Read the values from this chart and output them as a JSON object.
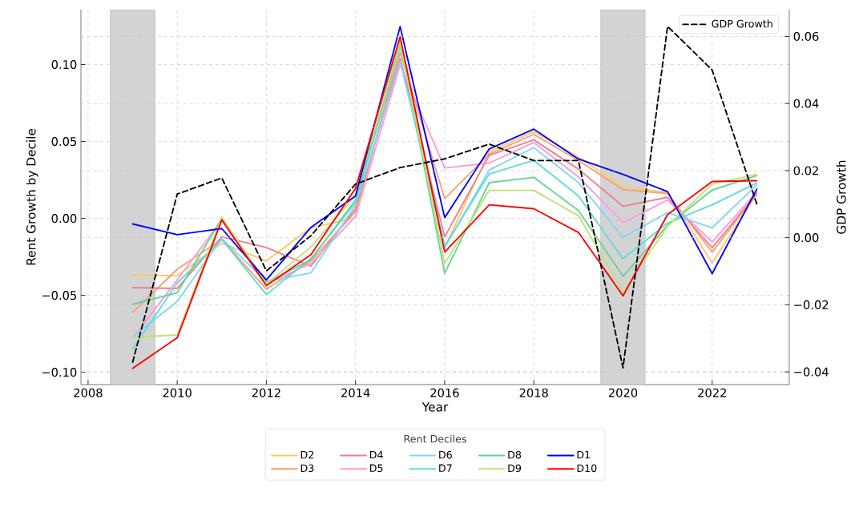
{
  "chart_data": {
    "type": "line",
    "xlabel": "Year",
    "ylabel": "Rent Growth by Decile",
    "y2label": "GDP Growth",
    "legend_title": "Rent Deciles",
    "x": [
      2009,
      2010,
      2011,
      2012,
      2013,
      2014,
      2015,
      2016,
      2017,
      2018,
      2019,
      2020,
      2021,
      2022,
      2023
    ],
    "xlim": [
      2007.84,
      2023.73
    ],
    "xticks": [
      2008,
      2010,
      2012,
      2014,
      2016,
      2018,
      2020,
      2022
    ],
    "ylim": [
      -0.108,
      0.1357
    ],
    "yticks": [
      {
        "value": -0.1,
        "label": "−0.10"
      },
      {
        "value": -0.05,
        "label": "−0.05"
      },
      {
        "value": 0,
        "label": "0.00"
      },
      {
        "value": 0.05,
        "label": "0.05"
      },
      {
        "value": 0.1,
        "label": "0.10"
      }
    ],
    "y2lim": [
      -0.0438,
      0.068
    ],
    "y2ticks": [
      {
        "value": -0.04,
        "label": "−0.04"
      },
      {
        "value": -0.02,
        "label": "−0.02"
      },
      {
        "value": 0,
        "label": "0.00"
      },
      {
        "value": 0.02,
        "label": "0.02"
      },
      {
        "value": 0.04,
        "label": "0.04"
      },
      {
        "value": 0.06,
        "label": "0.06"
      }
    ],
    "grid": true,
    "legend": "bottom",
    "line_style": "solid",
    "marker": "none",
    "bands": [
      {
        "axis": "x",
        "from": 2008.5,
        "to": 2009.5,
        "color": "#d3d3d3"
      },
      {
        "axis": "x",
        "from": 2019.5,
        "to": 2020.5,
        "color": "#d3d3d3"
      }
    ],
    "series": [
      {
        "name": "D2",
        "color": "#fdc765",
        "values": [
          -0.0366,
          -0.0373,
          -0.016,
          -0.0276,
          -0.0061,
          0.0005,
          0.112,
          -0.019,
          0.0435,
          0.0563,
          0.04,
          0.0204,
          0.017,
          -0.029,
          0.0157
        ]
      },
      {
        "name": "D3",
        "color": "#f7a072",
        "values": [
          -0.061,
          -0.033,
          -0.0136,
          -0.046,
          -0.0276,
          0.0046,
          0.108,
          0.0129,
          0.0419,
          0.0546,
          0.0377,
          0.0187,
          0.0162,
          -0.0219,
          0.016
        ]
      },
      {
        "name": "D4",
        "color": "#f0808f",
        "values": [
          -0.045,
          -0.0455,
          -0.012,
          -0.0189,
          -0.031,
          0.0063,
          0.104,
          -0.012,
          0.041,
          0.051,
          0.032,
          0.0079,
          0.0137,
          -0.019,
          0.016
        ]
      },
      {
        "name": "D5",
        "color": "#ff99dd",
        "values": [
          -0.078,
          -0.04,
          -0.001,
          -0.0425,
          -0.0293,
          0.0013,
          0.0998,
          0.0328,
          0.036,
          0.0493,
          0.027,
          -0.0028,
          0.012,
          -0.0152,
          0.017
        ]
      },
      {
        "name": "D6",
        "color": "#80d4ff",
        "values": [
          -0.077,
          -0.054,
          -0.013,
          -0.041,
          -0.0354,
          0.0088,
          0.102,
          -0.019,
          0.0315,
          0.046,
          0.0233,
          -0.0124,
          0.0038,
          -0.0061,
          0.0217
        ]
      },
      {
        "name": "D7",
        "color": "#5fdcd8",
        "values": [
          -0.0848,
          -0.042,
          -0.0136,
          -0.0495,
          -0.026,
          0.0104,
          0.112,
          -0.018,
          0.0289,
          0.0377,
          0.0146,
          -0.0263,
          -0.003,
          0.0088,
          0.023
        ]
      },
      {
        "name": "D8",
        "color": "#66d494",
        "values": [
          -0.0558,
          -0.0483,
          0,
          -0.0417,
          -0.0268,
          0.012,
          0.115,
          -0.0356,
          0.0232,
          0.0267,
          0.0051,
          -0.0376,
          -0.0045,
          0.0184,
          0.0278
        ]
      },
      {
        "name": "D9",
        "color": "#c2e07a",
        "values": [
          -0.0773,
          -0.0757,
          0.001,
          -0.0425,
          -0.0185,
          0.015,
          0.114,
          -0.0293,
          0.0182,
          0.0182,
          0.0017,
          -0.0475,
          -0.005,
          0.0224,
          0.0286
        ]
      },
      {
        "name": "D1",
        "color": "#0000ff",
        "values": [
          -0.0036,
          -0.0106,
          -0.0066,
          -0.04,
          -0.0058,
          0.0146,
          0.1247,
          0.0005,
          0.0452,
          0.058,
          0.0386,
          0.0286,
          0.0174,
          -0.0359,
          0.019
        ]
      },
      {
        "name": "D10",
        "color": "#ff0000",
        "values": [
          -0.0975,
          -0.0776,
          -0.001,
          -0.0437,
          -0.0235,
          0.0195,
          0.118,
          -0.0219,
          0.0088,
          0.0063,
          -0.0091,
          -0.0503,
          0.0025,
          0.024,
          0.0245
        ]
      },
      {
        "name": "GDP Growth",
        "color": "#000000",
        "axis": "y2",
        "line_style": "dashed",
        "values": [
          -0.0371,
          0.013,
          0.0178,
          -0.0099,
          0.0006,
          0.016,
          0.0209,
          0.0235,
          0.0279,
          0.023,
          0.023,
          -0.0388,
          0.063,
          0.05,
          0.0101
        ]
      }
    ]
  }
}
